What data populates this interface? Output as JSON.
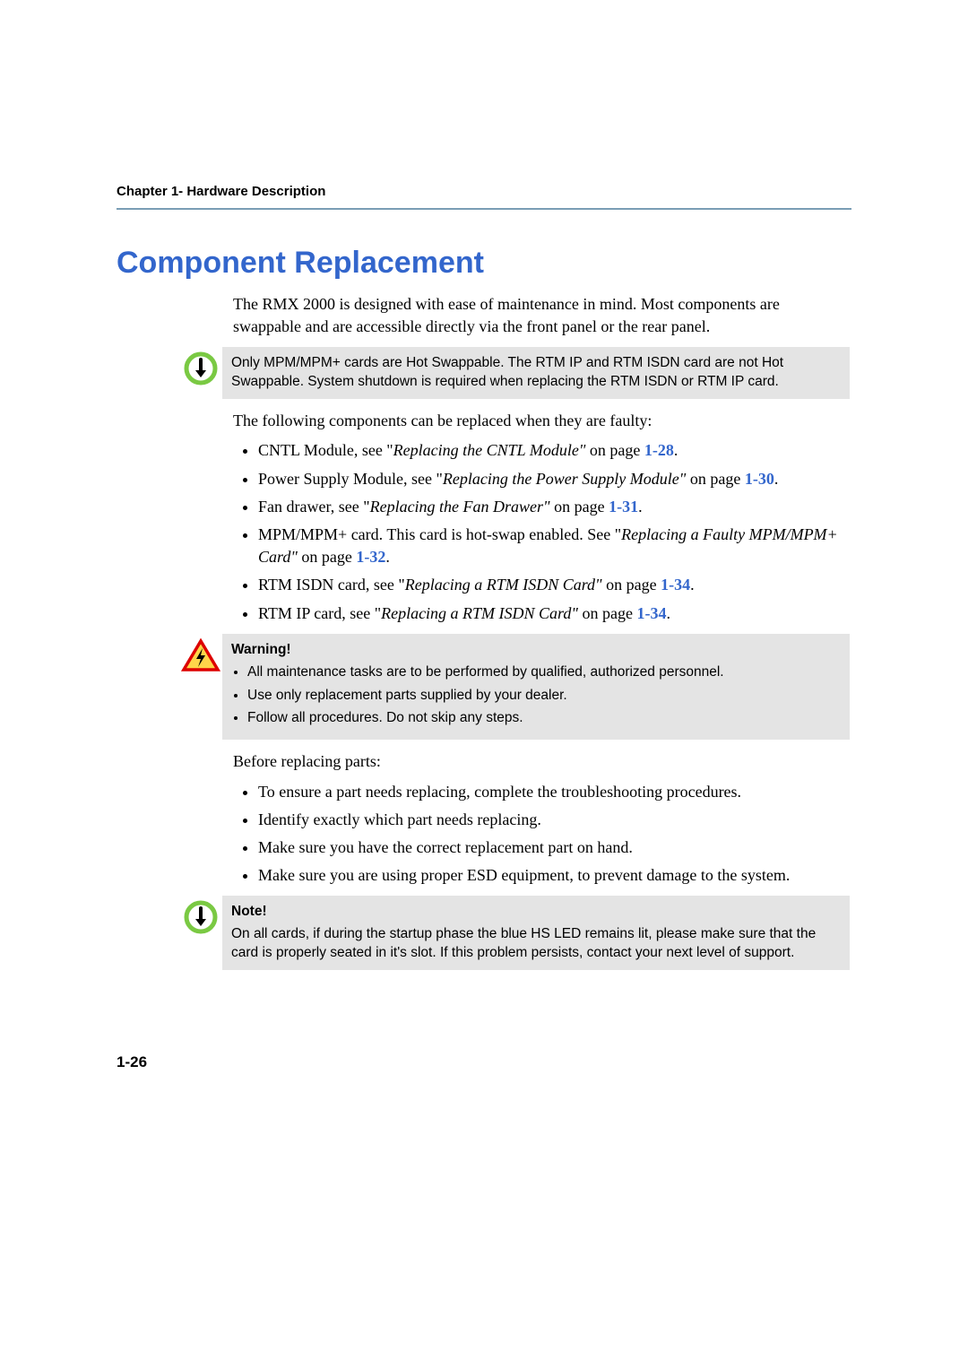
{
  "header": {
    "chapter": "Chapter 1- Hardware Description"
  },
  "title": "Component Replacement",
  "intro": "The RMX 2000 is designed with ease of maintenance in mind. Most components are swappable and are accessible directly via the front panel or the rear panel.",
  "note1": {
    "text": "Only MPM/MPM+ cards are Hot Swappable. The RTM IP and RTM ISDN card are not Hot Swappable. System shutdown is required when replacing the RTM ISDN or RTM IP card."
  },
  "faulty_intro": "The following components can be replaced when they are faulty:",
  "faulty_list": [
    {
      "pre": "CNTL Module, see ",
      "q": "\"",
      "ital": "Replacing the CNTL Module\"",
      "post": " on page ",
      "ref": "1-28",
      "tail": "."
    },
    {
      "pre": "Power Supply Module, see ",
      "q": "\"",
      "ital": "Replacing the Power Supply Module\"",
      "post": " on page ",
      "ref": "1-30",
      "tail": "."
    },
    {
      "pre": "Fan drawer, see ",
      "q": "\"",
      "ital": "Replacing the Fan Drawer\"",
      "post": " on page ",
      "ref": "1-31",
      "tail": "."
    },
    {
      "pre": "MPM/MPM+ card. This card is hot-swap enabled. See ",
      "q": "\"",
      "ital": "Replacing a Faulty MPM/MPM+ Card\"",
      "post": " on page ",
      "ref": "1-32",
      "tail": "."
    },
    {
      "pre": "RTM ISDN card, see ",
      "q": " \"",
      "ital": "Replacing a RTM ISDN Card\"",
      "post": " on page ",
      "ref": "1-34",
      "tail": "."
    },
    {
      "pre": "RTM IP card, see ",
      "q": " \"",
      "ital": "Replacing a RTM ISDN Card\"",
      "post": " on page ",
      "ref": "1-34",
      "tail": "."
    }
  ],
  "warning": {
    "title": "Warning!",
    "items": [
      "All maintenance tasks are to be performed by qualified, authorized personnel.",
      "Use only replacement parts supplied by your dealer.",
      "Follow all procedures. Do not skip any steps."
    ]
  },
  "before_intro": "Before replacing parts:",
  "before_list": [
    "To ensure a part needs replacing, complete the troubleshooting procedures.",
    "Identify exactly which part needs replacing.",
    "Make sure you have the correct replacement part on hand.",
    "Make sure you are using proper ESD equipment, to prevent damage to the system."
  ],
  "note2": {
    "title": "Note!",
    "text": "On all cards, if during the startup phase the blue HS LED remains lit, please make sure that the card is properly seated in it's slot. If this problem persists, contact your next level of support."
  },
  "page_number": "1-26",
  "colors": {
    "heading_blue": "#3366cc",
    "rule_gray": "#7a9db5",
    "callout_bg": "#e4e4e4",
    "icon_green": "#7ac943",
    "warn_red": "#d00",
    "warn_yellow": "#ffd54a"
  }
}
